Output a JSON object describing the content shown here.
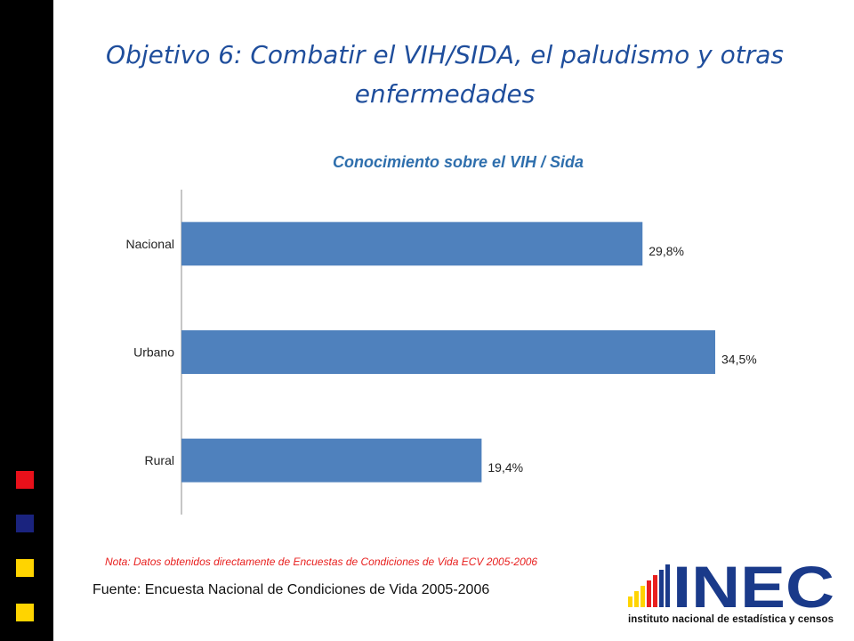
{
  "slide": {
    "title": "Objetivo 6: Combatir el VIH/SIDA, el paludismo y otras enfermedades",
    "note": "Nota: Datos obtenidos directamente de Encuestas de Condiciones de Vida ECV 2005-2006",
    "source": "Fuente: Encuesta Nacional de Condiciones de Vida 2005-2006",
    "decor_colors": [
      "#e8101a",
      "#1a237e",
      "#ffd400",
      "#ffd400"
    ]
  },
  "logo": {
    "wordmark": "INEC",
    "subtitle": "instituto nacional de estadística y censos",
    "colors": {
      "main": "#1a3a8a",
      "accent": "#e8201f"
    }
  },
  "chart_data": {
    "type": "bar",
    "orientation": "horizontal",
    "title": "Conocimiento sobre el VIH / Sida",
    "categories": [
      "Nacional",
      "Urbano",
      "Rural"
    ],
    "values": [
      29.8,
      34.5,
      19.4
    ],
    "value_labels": [
      "29,8%",
      "34,5%",
      "19,4%"
    ],
    "xlabel": "",
    "ylabel": "",
    "xlim": [
      0,
      35
    ],
    "grid": false,
    "legend": "none",
    "bar_color": "#4f81bd"
  }
}
